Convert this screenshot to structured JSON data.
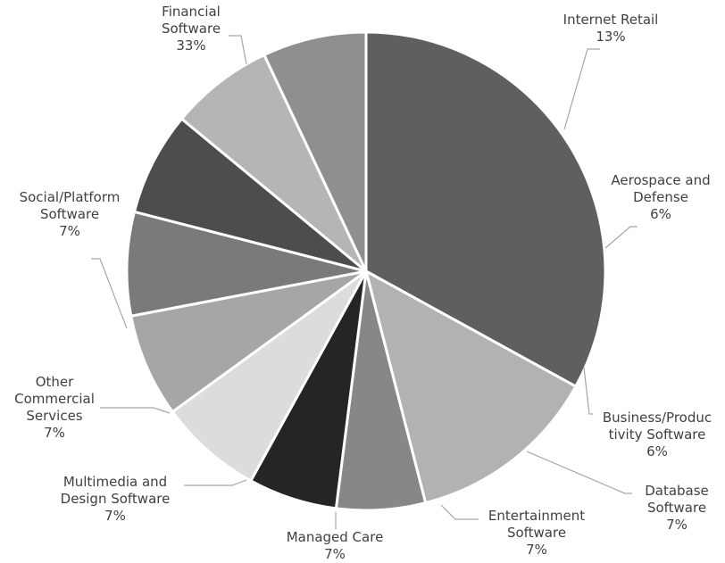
{
  "chart_data": {
    "type": "pie",
    "title": "",
    "grid": false,
    "legend": "none",
    "slices": [
      {
        "label_lines": [
          "Financial",
          "Software"
        ],
        "pct_text": "33%",
        "value": 33,
        "color": "#5f5f5f"
      },
      {
        "label_lines": [
          "Internet Retail"
        ],
        "pct_text": "13%",
        "value": 13,
        "color": "#b2b2b2"
      },
      {
        "label_lines": [
          "Aerospace and",
          "Defense"
        ],
        "pct_text": "6%",
        "value": 6,
        "color": "#878787"
      },
      {
        "label_lines": [
          "Business/Produc",
          "tivity Software"
        ],
        "pct_text": "6%",
        "value": 6,
        "color": "#252525"
      },
      {
        "label_lines": [
          "Database",
          "Software"
        ],
        "pct_text": "7%",
        "value": 7,
        "color": "#dcdcdc"
      },
      {
        "label_lines": [
          "Entertainment",
          "Software"
        ],
        "pct_text": "7%",
        "value": 7,
        "color": "#a6a6a6"
      },
      {
        "label_lines": [
          "Managed Care"
        ],
        "pct_text": "7%",
        "value": 7,
        "color": "#7a7a7a"
      },
      {
        "label_lines": [
          "Multimedia and",
          "Design Software"
        ],
        "pct_text": "7%",
        "value": 7,
        "color": "#4d4d4d"
      },
      {
        "label_lines": [
          "Other",
          "Commercial",
          "Services"
        ],
        "pct_text": "7%",
        "value": 7,
        "color": "#b5b5b5"
      },
      {
        "label_lines": [
          "Social/Platform",
          "Software"
        ],
        "pct_text": "7%",
        "value": 7,
        "color": "#8f8f8f"
      }
    ]
  }
}
